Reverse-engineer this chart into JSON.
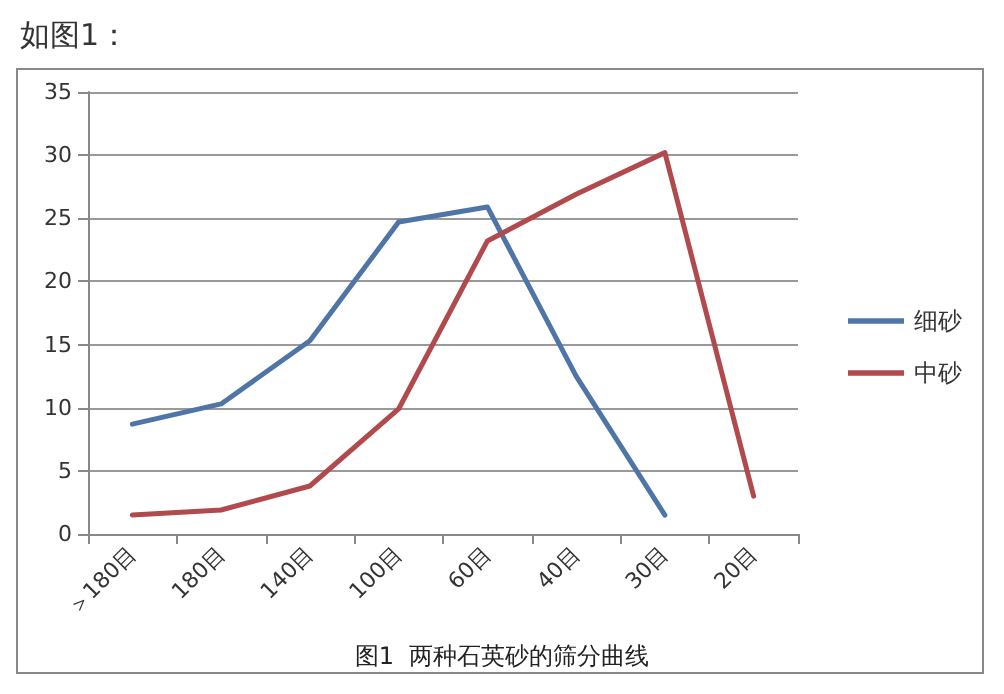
{
  "chart_data": {
    "type": "line",
    "title": "图1  两种石英砂的筛分曲线",
    "annotations": [
      "如图1："
    ],
    "categories": [
      "＞180目",
      "180目",
      "140目",
      "100目",
      "60目",
      "40目",
      "30目",
      "20目"
    ],
    "series": [
      {
        "name": "细砂",
        "color": "#4f75a8",
        "values": [
          8.7,
          10.3,
          15.3,
          24.7,
          25.9,
          12.5,
          1.5,
          null
        ]
      },
      {
        "name": "中砂",
        "color": "#b04a4d",
        "values": [
          1.5,
          1.9,
          3.8,
          9.9,
          23.2,
          26.9,
          30.2,
          3.0
        ]
      }
    ],
    "ylim": [
      0,
      35
    ],
    "yticks": [
      0,
      5,
      10,
      15,
      20,
      25,
      30,
      35
    ],
    "grid": "y",
    "legend": "right",
    "marker": "none",
    "line_style": "solid"
  }
}
